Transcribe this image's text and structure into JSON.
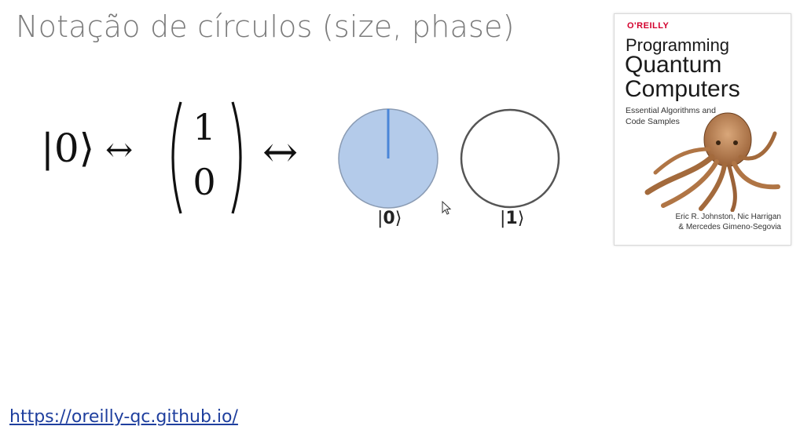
{
  "slide": {
    "title": "Notação de círculos (size, phase)",
    "link": "https://oreilly-qc.github.io/"
  },
  "equation": {
    "ket": "|0⟩",
    "arrow": "↔",
    "vector_top": "1",
    "vector_bottom": "0"
  },
  "circles": [
    {
      "label_prefix": "|",
      "label_digit": "0",
      "label_suffix": "⟩",
      "magnitude": 1.0,
      "phase_deg": 0,
      "fill": "#b4cbea",
      "line": "#4a86d8"
    },
    {
      "label_prefix": "|",
      "label_digit": "1",
      "label_suffix": "⟩",
      "magnitude": 0.0,
      "phase_deg": 0,
      "fill": "#ffffff",
      "line": "#4a86d8"
    }
  ],
  "book": {
    "publisher": "O'REILLY",
    "title_line1": "Programming",
    "title_line2": "Quantum",
    "title_line3": "Computers",
    "subtitle": "Essential Algorithms and Code Samples",
    "authors_line1": "Eric R. Johnston, Nic Harrigan",
    "authors_line2": "& Mercedes Gimeno-Segovia"
  },
  "colors": {
    "title": "#7b7b7b",
    "link": "#1f3f9e",
    "publisher": "#d3002d"
  }
}
